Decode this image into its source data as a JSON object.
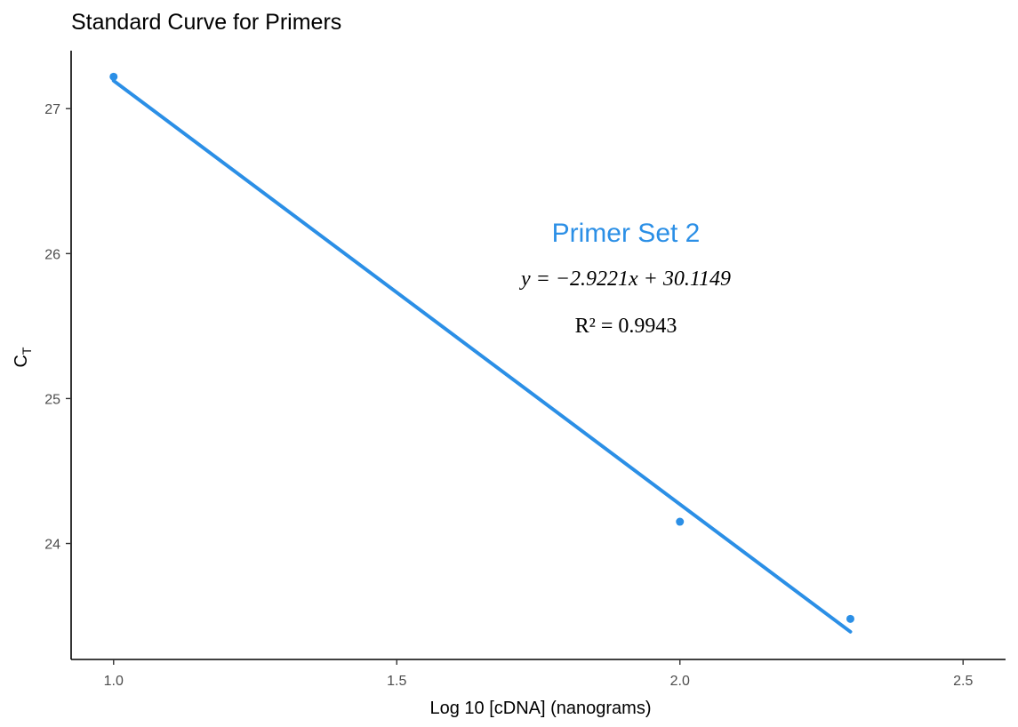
{
  "colors": {
    "accent": "#2b8fe6",
    "axis": "#000000",
    "tick_text": "#4d4d4d"
  },
  "chart_data": {
    "type": "scatter",
    "title": "Standard Curve for Primers",
    "xlabel": "Log 10 [cDNA] (nanograms)",
    "ylabel": "C",
    "ylabel_subscript": "T",
    "xlim": [
      0.925,
      2.575
    ],
    "ylim": [
      23.2,
      27.4
    ],
    "x_ticks": [
      1.0,
      1.5,
      2.0,
      2.5
    ],
    "x_tick_labels": [
      "1.0",
      "1.5",
      "2.0",
      "2.5"
    ],
    "y_ticks": [
      24,
      25,
      26,
      27
    ],
    "y_tick_labels": [
      "24",
      "25",
      "26",
      "27"
    ],
    "grid": false,
    "series": [
      {
        "points": [
          {
            "x": 1.0,
            "y": 27.22
          },
          {
            "x": 2.0,
            "y": 24.15
          },
          {
            "x": 2.301,
            "y": 23.48
          }
        ]
      }
    ],
    "fit_line": {
      "slope": -2.9221,
      "intercept": 30.1149,
      "x_range": [
        1.0,
        2.301
      ]
    },
    "annotations": {
      "label": "Primer Set 2",
      "equation": "y = −2.9221x + 30.1149",
      "r_squared": "R² = 0.9943"
    }
  }
}
